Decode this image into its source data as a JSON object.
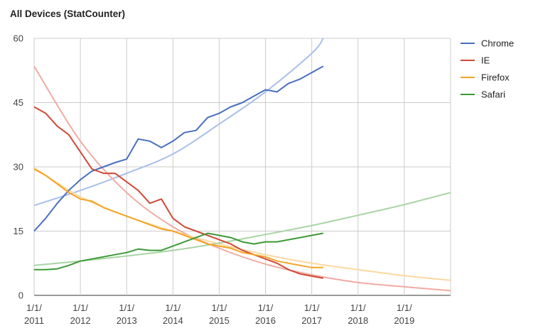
{
  "chart_data": {
    "type": "line",
    "title": "All Devices (StatCounter)",
    "xlabel": "",
    "ylabel": "",
    "ylim": [
      0,
      60
    ],
    "xlim": [
      "2011-01-01",
      "2020-01-01"
    ],
    "y_ticks": [
      "0",
      "15",
      "30",
      "45",
      "60"
    ],
    "x_ticks": [
      {
        "line1": "1/1/",
        "line2": "2011"
      },
      {
        "line1": "1/1/",
        "line2": "2012"
      },
      {
        "line1": "1/1/",
        "line2": "2013"
      },
      {
        "line1": "1/1/",
        "line2": "2014"
      },
      {
        "line1": "1/1/",
        "line2": "2015"
      },
      {
        "line1": "1/1/",
        "line2": "2016"
      },
      {
        "line1": "1/1/",
        "line2": "2017"
      },
      {
        "line1": "1/1/",
        "line2": "2018"
      },
      {
        "line1": "1/1/",
        "line2": "2019"
      }
    ],
    "grid": true,
    "legend_position": "right",
    "series": [
      {
        "name": "Chrome",
        "color": "#4a6fc0",
        "x": [
          "2011-01",
          "2011-04",
          "2011-07",
          "2011-10",
          "2012-01",
          "2012-04",
          "2012-07",
          "2012-10",
          "2013-01",
          "2013-04",
          "2013-07",
          "2013-10",
          "2014-01",
          "2014-04",
          "2014-07",
          "2014-10",
          "2015-01",
          "2015-04",
          "2015-07",
          "2015-10",
          "2016-01",
          "2016-04",
          "2016-07",
          "2016-10",
          "2017-01",
          "2017-04"
        ],
        "y": [
          15.0,
          18.0,
          21.5,
          24.5,
          27.0,
          29.0,
          30.0,
          31.0,
          31.8,
          36.5,
          36.0,
          34.5,
          36.0,
          38.0,
          38.5,
          41.5,
          42.5,
          44.0,
          45.0,
          46.5,
          48.0,
          47.5,
          49.5,
          50.5,
          52.0,
          53.5
        ]
      },
      {
        "name": "IE",
        "color": "#cf4a36",
        "x": [
          "2011-01",
          "2011-04",
          "2011-07",
          "2011-10",
          "2012-01",
          "2012-04",
          "2012-07",
          "2012-10",
          "2013-01",
          "2013-04",
          "2013-07",
          "2013-10",
          "2014-01",
          "2014-04",
          "2014-07",
          "2014-10",
          "2015-01",
          "2015-04",
          "2015-07",
          "2015-10",
          "2016-01",
          "2016-04",
          "2016-07",
          "2016-10",
          "2017-01",
          "2017-04"
        ],
        "y": [
          44.0,
          42.5,
          39.5,
          37.5,
          33.5,
          29.5,
          28.5,
          28.5,
          26.5,
          24.5,
          21.5,
          22.5,
          18.0,
          16.0,
          15.0,
          14.0,
          13.0,
          12.0,
          10.5,
          9.5,
          8.5,
          7.5,
          6.0,
          5.0,
          4.5,
          4.0
        ]
      },
      {
        "name": "Firefox",
        "color": "#f5a322",
        "x": [
          "2011-01",
          "2011-04",
          "2011-07",
          "2011-10",
          "2012-01",
          "2012-04",
          "2012-07",
          "2012-10",
          "2013-01",
          "2013-04",
          "2013-07",
          "2013-10",
          "2014-01",
          "2014-04",
          "2014-07",
          "2014-10",
          "2015-01",
          "2015-04",
          "2015-07",
          "2015-10",
          "2016-01",
          "2016-04",
          "2016-07",
          "2016-10",
          "2017-01",
          "2017-04"
        ],
        "y": [
          29.5,
          28.0,
          26.0,
          24.0,
          22.5,
          22.0,
          20.5,
          19.5,
          18.5,
          17.5,
          16.5,
          15.5,
          15.0,
          14.0,
          13.0,
          12.0,
          11.5,
          11.0,
          10.0,
          9.5,
          9.0,
          8.0,
          7.5,
          7.0,
          6.5,
          6.5
        ]
      },
      {
        "name": "Safari",
        "color": "#3c9a36",
        "x": [
          "2011-01",
          "2011-04",
          "2011-07",
          "2011-10",
          "2012-01",
          "2012-04",
          "2012-07",
          "2012-10",
          "2013-01",
          "2013-04",
          "2013-07",
          "2013-10",
          "2014-01",
          "2014-04",
          "2014-07",
          "2014-10",
          "2015-01",
          "2015-04",
          "2015-07",
          "2015-10",
          "2016-01",
          "2016-04",
          "2016-07",
          "2016-10",
          "2017-01",
          "2017-04"
        ],
        "y": [
          6.0,
          6.0,
          6.2,
          7.0,
          8.0,
          8.5,
          9.0,
          9.5,
          10.0,
          10.8,
          10.5,
          10.5,
          11.5,
          12.5,
          13.5,
          14.5,
          14.0,
          13.5,
          12.5,
          12.0,
          12.5,
          12.5,
          13.0,
          13.5,
          14.0,
          14.5
        ]
      }
    ],
    "trendlines": [
      {
        "series": "Chrome",
        "color": "#a9bfea",
        "x": [
          "2011-01",
          "2012-01",
          "2013-01",
          "2014-01",
          "2015-01",
          "2016-01",
          "2017-01",
          "2017-04"
        ],
        "y": [
          21.0,
          24.5,
          28.5,
          33.0,
          40.0,
          47.5,
          56.5,
          60.0
        ]
      },
      {
        "series": "IE",
        "color": "#f2aaa1",
        "x": [
          "2011-01",
          "2012-01",
          "2013-01",
          "2014-01",
          "2015-01",
          "2016-01",
          "2017-01",
          "2018-01",
          "2019-01",
          "2020-01"
        ],
        "y": [
          53.5,
          36.0,
          24.0,
          16.0,
          11.0,
          7.3,
          4.8,
          3.0,
          2.0,
          1.1
        ]
      },
      {
        "series": "Firefox",
        "color": "#fcd8a0",
        "x": [
          "2011-01",
          "2012-01",
          "2013-01",
          "2014-01",
          "2015-01",
          "2016-01",
          "2017-01",
          "2018-01",
          "2019-01",
          "2020-01"
        ],
        "y": [
          29.8,
          23.0,
          18.5,
          15.0,
          12.0,
          9.5,
          7.5,
          6.0,
          4.6,
          3.5
        ]
      },
      {
        "series": "Safari",
        "color": "#a9d5a5",
        "x": [
          "2011-01",
          "2012-01",
          "2013-01",
          "2014-01",
          "2015-01",
          "2016-01",
          "2017-01",
          "2018-01",
          "2019-01",
          "2020-01"
        ],
        "y": [
          7.0,
          8.0,
          9.2,
          10.5,
          12.2,
          14.2,
          16.3,
          18.7,
          21.2,
          24.0
        ]
      }
    ]
  }
}
